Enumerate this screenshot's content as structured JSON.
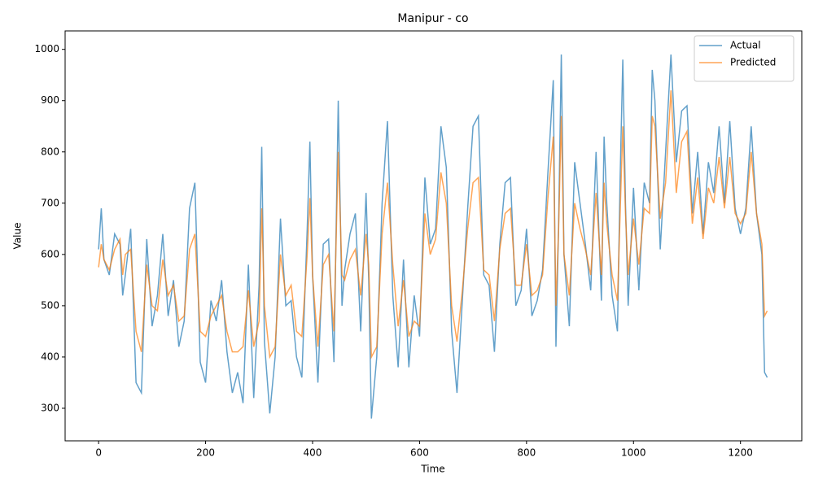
{
  "chart_data": {
    "type": "line",
    "title": "Manipur - co",
    "x_label": "Time",
    "y_label": "Value",
    "x": [
      0,
      5,
      10,
      20,
      30,
      40,
      45,
      50,
      60,
      70,
      80,
      90,
      100,
      110,
      120,
      130,
      140,
      150,
      160,
      170,
      180,
      190,
      200,
      210,
      220,
      230,
      240,
      250,
      260,
      270,
      280,
      290,
      300,
      305,
      310,
      320,
      330,
      340,
      350,
      360,
      370,
      380,
      390,
      395,
      400,
      410,
      420,
      430,
      440,
      448,
      455,
      460,
      470,
      480,
      490,
      500,
      505,
      510,
      520,
      530,
      540,
      550,
      560,
      570,
      580,
      590,
      600,
      610,
      620,
      630,
      640,
      650,
      660,
      670,
      680,
      690,
      700,
      710,
      720,
      730,
      740,
      750,
      760,
      770,
      780,
      790,
      800,
      810,
      820,
      830,
      840,
      850,
      855,
      860,
      865,
      870,
      880,
      890,
      900,
      910,
      920,
      930,
      940,
      945,
      950,
      960,
      970,
      975,
      980,
      985,
      990,
      1000,
      1010,
      1020,
      1030,
      1035,
      1040,
      1050,
      1060,
      1070,
      1080,
      1090,
      1100,
      1110,
      1120,
      1130,
      1140,
      1150,
      1160,
      1170,
      1180,
      1190,
      1200,
      1210,
      1220,
      1230,
      1240,
      1245,
      1250
    ],
    "series": [
      {
        "name": "Actual",
        "color": "#1f77b4",
        "values": [
          610,
          690,
          590,
          560,
          640,
          620,
          520,
          560,
          650,
          350,
          330,
          630,
          460,
          520,
          640,
          480,
          550,
          420,
          470,
          690,
          740,
          390,
          350,
          510,
          470,
          550,
          410,
          330,
          370,
          310,
          580,
          320,
          540,
          810,
          430,
          290,
          400,
          670,
          500,
          510,
          400,
          360,
          650,
          820,
          560,
          350,
          620,
          630,
          390,
          900,
          500,
          570,
          640,
          680,
          450,
          720,
          550,
          280,
          400,
          700,
          860,
          520,
          380,
          590,
          380,
          520,
          440,
          750,
          620,
          650,
          850,
          770,
          450,
          330,
          510,
          690,
          850,
          870,
          560,
          540,
          410,
          620,
          740,
          750,
          500,
          530,
          650,
          480,
          510,
          570,
          760,
          940,
          420,
          660,
          990,
          600,
          460,
          780,
          700,
          620,
          530,
          800,
          510,
          830,
          700,
          520,
          450,
          750,
          980,
          700,
          500,
          730,
          530,
          740,
          700,
          960,
          900,
          610,
          800,
          990,
          780,
          880,
          890,
          680,
          800,
          640,
          780,
          720,
          850,
          700,
          860,
          690,
          640,
          690,
          850,
          680,
          600,
          370,
          360
        ]
      },
      {
        "name": "Predicted",
        "color": "#ff7f0e",
        "values": [
          575,
          620,
          590,
          570,
          610,
          630,
          560,
          600,
          610,
          450,
          410,
          580,
          500,
          490,
          590,
          520,
          540,
          470,
          480,
          610,
          640,
          450,
          440,
          480,
          500,
          520,
          450,
          410,
          410,
          420,
          530,
          420,
          470,
          690,
          500,
          400,
          420,
          600,
          520,
          540,
          450,
          440,
          600,
          710,
          560,
          420,
          580,
          600,
          450,
          800,
          560,
          550,
          590,
          610,
          520,
          640,
          580,
          400,
          420,
          640,
          740,
          580,
          460,
          550,
          440,
          470,
          460,
          680,
          600,
          630,
          760,
          700,
          500,
          430,
          530,
          650,
          740,
          750,
          570,
          560,
          470,
          610,
          680,
          690,
          540,
          540,
          620,
          520,
          530,
          560,
          710,
          830,
          500,
          650,
          870,
          600,
          520,
          700,
          650,
          610,
          560,
          720,
          560,
          740,
          660,
          560,
          510,
          680,
          850,
          680,
          560,
          670,
          580,
          690,
          680,
          870,
          850,
          670,
          740,
          920,
          720,
          820,
          840,
          660,
          750,
          630,
          730,
          700,
          790,
          690,
          790,
          680,
          660,
          680,
          800,
          680,
          620,
          480,
          490
        ]
      }
    ],
    "xlim": [
      -62.6,
      1314.6
    ],
    "ylim": [
      236.5,
      1036
    ],
    "xticks": [
      0,
      200,
      400,
      600,
      800,
      1000,
      1200
    ],
    "yticks": [
      300,
      400,
      500,
      600,
      700,
      800,
      900,
      1000
    ],
    "legend": "upper right"
  }
}
